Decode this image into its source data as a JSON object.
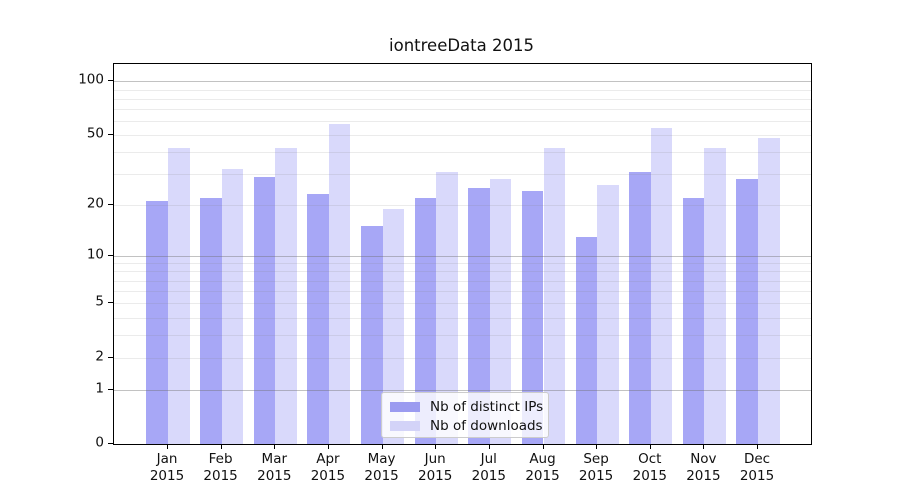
{
  "chart_data": {
    "type": "bar",
    "title": "iontreeData 2015",
    "categories": [
      "Jan",
      "Feb",
      "Mar",
      "Apr",
      "May",
      "Jun",
      "Jul",
      "Aug",
      "Sep",
      "Oct",
      "Nov",
      "Dec"
    ],
    "year_label": "2015",
    "series": [
      {
        "name": "Nb of distinct IPs",
        "bar_color": "#a7a7f6",
        "swatch_color": "#9b9bf0",
        "values": [
          21,
          22,
          29,
          23,
          15,
          22,
          25,
          24,
          13,
          31,
          22,
          28
        ]
      },
      {
        "name": "Nb of downloads",
        "bar_color": "#d9d9fb",
        "swatch_color": "#d3d3f8",
        "values": [
          42,
          32,
          42,
          58,
          19,
          31,
          28,
          42,
          26,
          55,
          42,
          48
        ]
      }
    ],
    "yscale": "log10(value+1)",
    "yticks": [
      0,
      1,
      2,
      5,
      10,
      20,
      50,
      100
    ],
    "ylim": [
      0,
      125
    ],
    "grid": "horizontal major and minor gridlines",
    "legend_position": "lower center of plot",
    "colors": {
      "background": "#ffffff",
      "axis": "#000000",
      "grid_major": "#c3c3c3",
      "grid_minor": "#e9e9e9",
      "text": "#111111"
    }
  }
}
